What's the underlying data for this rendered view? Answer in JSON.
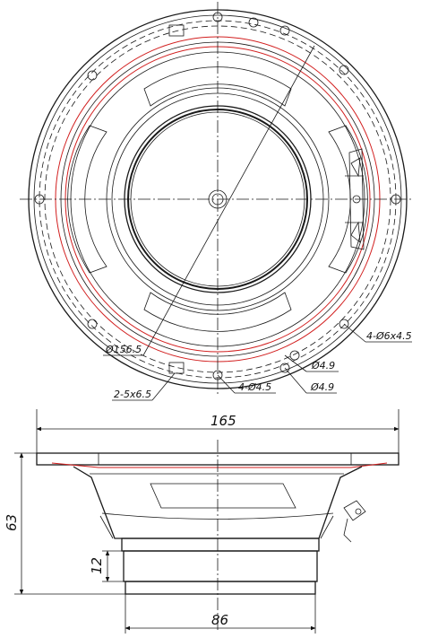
{
  "front_view": {
    "callouts": {
      "mount_slots": "4-Ø6x4.5",
      "hole_a": "Ø4.9",
      "hole_b": "Ø4.9",
      "screw_holes": "4-Ø4.5",
      "slots": "2-5x6.5",
      "bolt_circle": "Ø156.5"
    }
  },
  "side_view": {
    "dimensions": {
      "overall_width": "165",
      "overall_height": "63",
      "step_height": "12",
      "magnet_width": "86"
    }
  }
}
